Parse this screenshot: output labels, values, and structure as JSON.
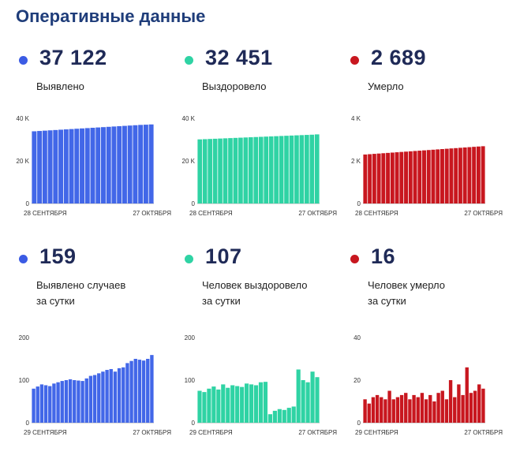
{
  "title": "Оперативные данные",
  "panels": [
    {
      "value": "37 122",
      "label1": "Выявлено",
      "label2": "",
      "color": "#4267e8",
      "dot_color": "#3b5be4"
    },
    {
      "value": "32 451",
      "label1": "Выздоровело",
      "label2": "",
      "color": "#2fd3a4",
      "dot_color": "#2fd3a4"
    },
    {
      "value": "2 689",
      "label1": "Умерло",
      "label2": "",
      "color": "#c8171f",
      "dot_color": "#c8171f"
    },
    {
      "value": "159",
      "label1": "Выявлено случаев",
      "label2": "за сутки",
      "color": "#4267e8",
      "dot_color": "#3b5be4"
    },
    {
      "value": "107",
      "label1": "Человек выздоровело",
      "label2": "за сутки",
      "color": "#2fd3a4",
      "dot_color": "#2fd3a4"
    },
    {
      "value": "16",
      "label1": "Человек умерло",
      "label2": "за сутки",
      "color": "#c8171f",
      "dot_color": "#c8171f"
    }
  ],
  "chart_data": [
    {
      "type": "bar",
      "x_start": "28 СЕНТЯБРЯ",
      "x_end": "27 ОКТЯБРЯ",
      "yticks": [
        "0",
        "20 K",
        "40 K"
      ],
      "ylim": [
        0,
        40000
      ],
      "values": [
        33900,
        34050,
        34200,
        34350,
        34500,
        34650,
        34800,
        34950,
        35100,
        35250,
        35400,
        35550,
        35700,
        35850,
        36000,
        36150,
        36300,
        36450,
        36600,
        36750,
        36900,
        37000,
        37122
      ]
    },
    {
      "type": "bar",
      "x_start": "28 СЕНТЯБРЯ",
      "x_end": "27 ОКТЯБРЯ",
      "yticks": [
        "0",
        "20 K",
        "40 K"
      ],
      "ylim": [
        0,
        40000
      ],
      "values": [
        30100,
        30200,
        30300,
        30400,
        30500,
        30600,
        30700,
        30800,
        30900,
        31000,
        31100,
        31200,
        31300,
        31400,
        31500,
        31600,
        31700,
        31800,
        31900,
        32000,
        32100,
        32200,
        32300,
        32451
      ]
    },
    {
      "type": "bar",
      "x_start": "28 СЕНТЯБРЯ",
      "x_end": "27 ОКТЯБРЯ",
      "yticks": [
        "0",
        "2 K",
        "4 K"
      ],
      "ylim": [
        0,
        4000
      ],
      "values": [
        2300,
        2315,
        2330,
        2345,
        2360,
        2375,
        2390,
        2405,
        2420,
        2435,
        2450,
        2465,
        2480,
        2495,
        2510,
        2525,
        2540,
        2555,
        2570,
        2585,
        2600,
        2615,
        2630,
        2645,
        2660,
        2675,
        2689
      ]
    },
    {
      "type": "bar",
      "x_start": "29 СЕНТЯБРЯ",
      "x_end": "27 ОКТЯБРЯ",
      "yticks": [
        "0",
        "100",
        "200"
      ],
      "ylim": [
        0,
        200
      ],
      "values": [
        80,
        85,
        90,
        88,
        86,
        92,
        95,
        98,
        100,
        102,
        100,
        99,
        98,
        104,
        110,
        112,
        116,
        120,
        124,
        126,
        120,
        128,
        130,
        140,
        145,
        150,
        148,
        146,
        150,
        159
      ]
    },
    {
      "type": "bar",
      "x_start": "29 СЕНТЯБРЯ",
      "x_end": "27 ОКТЯБРЯ",
      "yticks": [
        "0",
        "100",
        "200"
      ],
      "ylim": [
        0,
        200
      ],
      "values": [
        75,
        72,
        80,
        85,
        78,
        90,
        82,
        88,
        86,
        84,
        92,
        90,
        88,
        95,
        96,
        20,
        28,
        32,
        30,
        35,
        38,
        125,
        100,
        95,
        120,
        107
      ]
    },
    {
      "type": "bar",
      "x_start": "29 СЕНТЯБРЯ",
      "x_end": "27 ОКТЯБРЯ",
      "yticks": [
        "0",
        "20",
        "40"
      ],
      "ylim": [
        0,
        40
      ],
      "values": [
        11,
        9,
        12,
        13,
        12,
        11,
        15,
        11,
        12,
        13,
        14,
        11,
        13,
        12,
        14,
        11,
        13,
        10,
        14,
        15,
        11,
        20,
        12,
        18,
        13,
        26,
        14,
        15,
        18,
        16
      ]
    }
  ]
}
